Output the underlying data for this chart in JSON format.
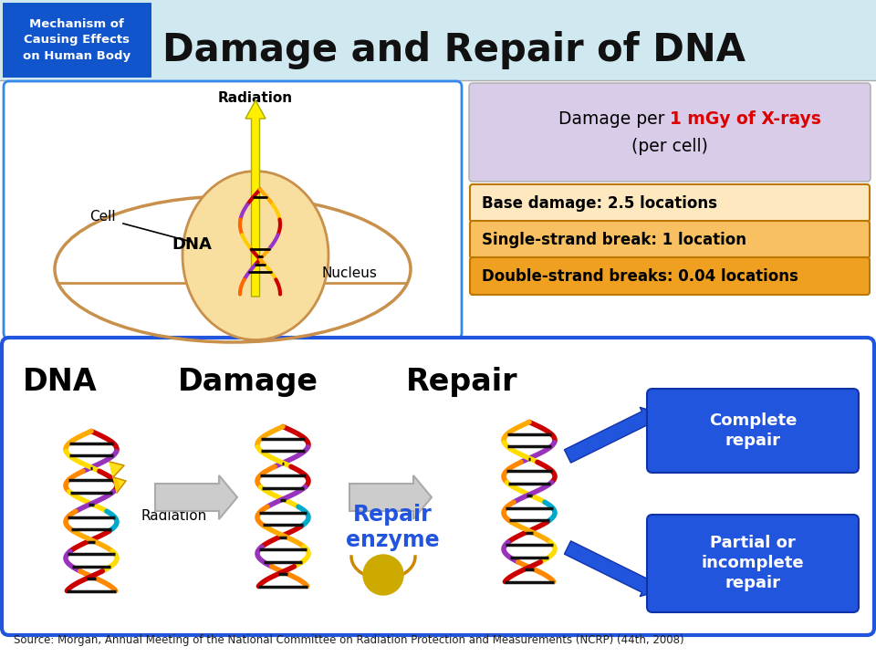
{
  "title": "Damage and Repair of DNA",
  "subtitle_box_text": "Mechanism of\nCausing Effects\non Human Body",
  "subtitle_box_color": "#1155cc",
  "header_bg_color": "#d0e8f0",
  "main_bg_color": "#ffffff",
  "damage_info_box_color": "#d8cce8",
  "damage_rows": [
    {
      "text": "Base damage: 2.5 locations",
      "color": "#fde8c0"
    },
    {
      "text": "Single-strand break: 1 location",
      "color": "#f8c060"
    },
    {
      "text": "Double-strand breaks: 0.04 locations",
      "color": "#f0a020"
    }
  ],
  "bottom_border_color": "#2255dd",
  "repair_box_color": "#2255dd",
  "source_text": "Source: Morgan, Annual Meeting of the National Committee on Radiation Protection and Measurements (NCRP) (44th, 2008)"
}
